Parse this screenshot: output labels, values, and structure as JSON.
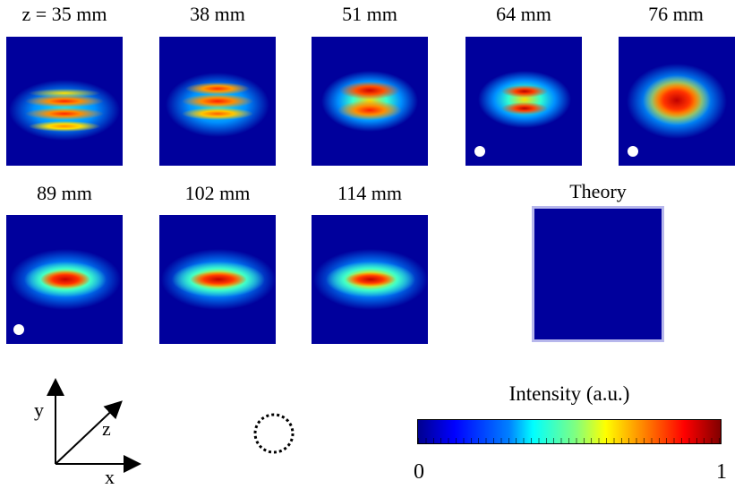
{
  "panels": [
    {
      "label": "z = 35 mm",
      "pattern": "bands4",
      "marker": false
    },
    {
      "label": "38 mm",
      "pattern": "bands3",
      "marker": false
    },
    {
      "label": "51 mm",
      "pattern": "bands2",
      "marker": false
    },
    {
      "label": "64 mm",
      "pattern": "double",
      "marker": true
    },
    {
      "label": "76 mm",
      "pattern": "block",
      "marker": true
    },
    {
      "label": "89 mm",
      "pattern": "ellipse",
      "marker": true
    },
    {
      "label": "102 mm",
      "pattern": "ellipse",
      "marker": false
    },
    {
      "label": "114 mm",
      "pattern": "ellipse",
      "marker": false
    }
  ],
  "theory": {
    "label": "Theory",
    "pattern": "theory"
  },
  "axes": {
    "y": "y",
    "z": "z",
    "x": "x"
  },
  "colorbar": {
    "title": "Intensity (a.u.)",
    "min_label": "0",
    "max_label": "1",
    "colormap": "jet"
  },
  "colors": {
    "background_field": "#00009c",
    "frame": "#b7b7ec",
    "marker": "#ffffff"
  }
}
